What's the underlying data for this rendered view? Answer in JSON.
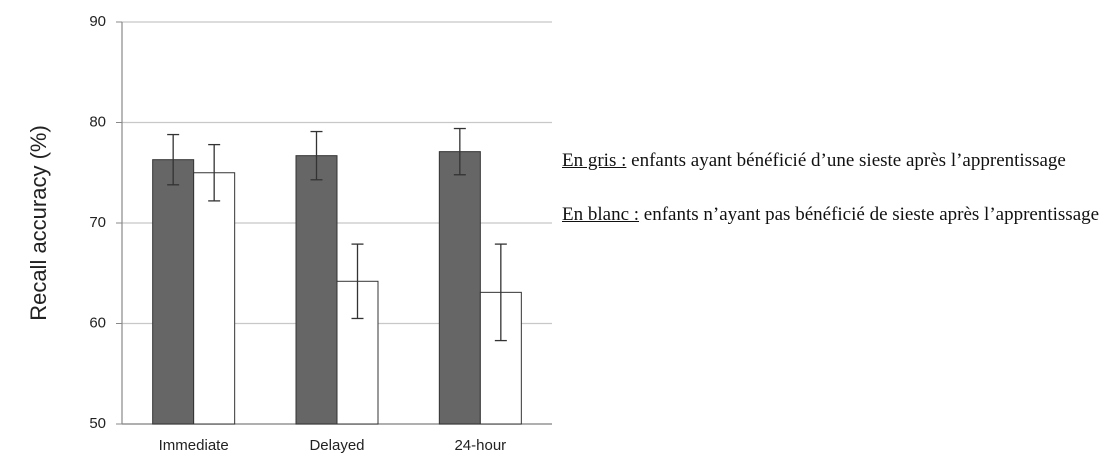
{
  "chart_data": {
    "type": "bar",
    "ylabel": "Recall accuracy (%)",
    "categories": [
      "Immediate",
      "Delayed",
      "24-hour"
    ],
    "series": [
      {
        "color": "#666666",
        "values": [
          76.3,
          76.7,
          77.1
        ],
        "errors": [
          2.5,
          2.4,
          2.3
        ]
      },
      {
        "color": "#ffffff",
        "values": [
          75.0,
          64.2,
          63.1
        ],
        "errors": [
          2.8,
          3.7,
          4.8
        ]
      }
    ],
    "ylim": [
      50,
      90
    ],
    "yticks": [
      50,
      60,
      70,
      80,
      90
    ],
    "grid": true,
    "notes": [
      {
        "label": "En gris :",
        "text": "enfants ayant bénéficié d’une sieste après l’apprentissage"
      },
      {
        "label": "En blanc :",
        "text": "enfants n’ayant pas bénéficié de sieste après l’apprentissage"
      }
    ]
  }
}
